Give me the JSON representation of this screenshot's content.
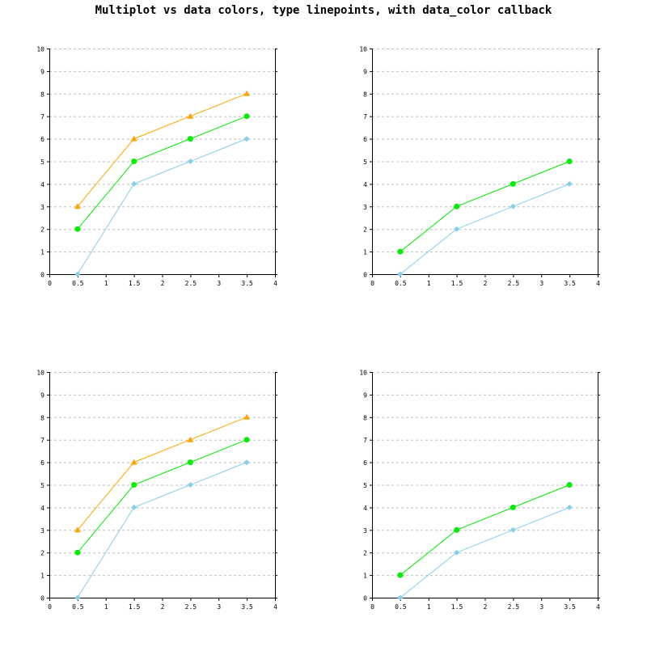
{
  "title": "Multiplot vs data colors, type linepoints, with data_color callback",
  "colors": {
    "grid": "#c0c0c0",
    "axis": "#000000",
    "series": [
      "#87ceeb",
      "#00ee00",
      "#ffa500"
    ]
  },
  "chart_data": [
    {
      "type": "line",
      "markers": [
        "diamond",
        "circle",
        "triangle"
      ],
      "x": [
        0.5,
        1.5,
        2.5,
        3.5
      ],
      "xlim": [
        0,
        4
      ],
      "ylim": [
        0,
        10
      ],
      "xticks": [
        "0",
        "0.5",
        "1",
        "1.5",
        "2",
        "2.5",
        "3",
        "3.5",
        "4"
      ],
      "yticks": [
        "0",
        "1",
        "2",
        "3",
        "4",
        "5",
        "6",
        "7",
        "8",
        "9",
        "10"
      ],
      "grid": "horizontal-dashed",
      "series": [
        {
          "values": [
            0,
            4,
            5,
            6
          ]
        },
        {
          "values": [
            2,
            5,
            6,
            7
          ]
        },
        {
          "values": [
            3,
            6,
            7,
            8
          ]
        }
      ]
    },
    {
      "type": "line",
      "markers": [
        "diamond",
        "circle"
      ],
      "x": [
        0.5,
        1.5,
        2.5,
        3.5
      ],
      "xlim": [
        0,
        4
      ],
      "ylim": [
        0,
        10
      ],
      "xticks": [
        "0",
        "0.5",
        "1",
        "1.5",
        "2",
        "2.5",
        "3",
        "3.5",
        "4"
      ],
      "yticks": [
        "0",
        "1",
        "2",
        "3",
        "4",
        "5",
        "6",
        "7",
        "8",
        "9",
        "10"
      ],
      "grid": "horizontal-dashed",
      "series": [
        {
          "values": [
            0,
            2,
            3,
            4
          ]
        },
        {
          "values": [
            1,
            3,
            4,
            5
          ]
        }
      ]
    },
    {
      "type": "line",
      "markers": [
        "diamond",
        "circle",
        "triangle"
      ],
      "x": [
        0.5,
        1.5,
        2.5,
        3.5
      ],
      "xlim": [
        0,
        4
      ],
      "ylim": [
        0,
        10
      ],
      "xticks": [
        "0",
        "0.5",
        "1",
        "1.5",
        "2",
        "2.5",
        "3",
        "3.5",
        "4"
      ],
      "yticks": [
        "0",
        "1",
        "2",
        "3",
        "4",
        "5",
        "6",
        "7",
        "8",
        "9",
        "10"
      ],
      "grid": "horizontal-dashed",
      "series": [
        {
          "values": [
            0,
            4,
            5,
            6
          ]
        },
        {
          "values": [
            2,
            5,
            6,
            7
          ]
        },
        {
          "values": [
            3,
            6,
            7,
            8
          ]
        }
      ]
    },
    {
      "type": "line",
      "markers": [
        "diamond",
        "circle"
      ],
      "x": [
        0.5,
        1.5,
        2.5,
        3.5
      ],
      "xlim": [
        0,
        4
      ],
      "ylim": [
        0,
        10
      ],
      "xticks": [
        "0",
        "0.5",
        "1",
        "1.5",
        "2",
        "2.5",
        "3",
        "3.5",
        "4"
      ],
      "yticks": [
        "0",
        "1",
        "2",
        "3",
        "4",
        "5",
        "6",
        "7",
        "8",
        "9",
        "10"
      ],
      "grid": "horizontal-dashed",
      "series": [
        {
          "values": [
            0,
            2,
            3,
            4
          ]
        },
        {
          "values": [
            1,
            3,
            4,
            5
          ]
        }
      ]
    }
  ]
}
